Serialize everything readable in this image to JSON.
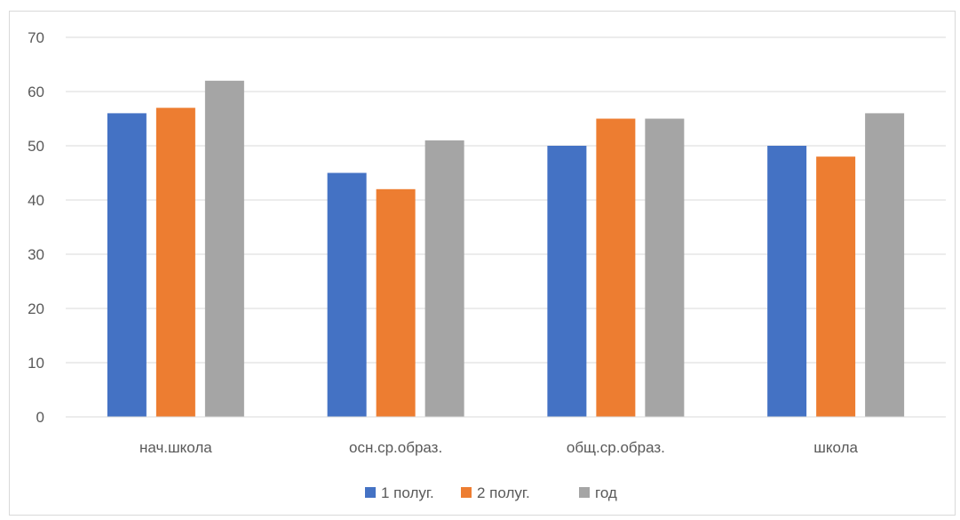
{
  "chart_data": {
    "type": "bar",
    "categories": [
      "нач.школа",
      "осн.ср.образ.",
      "общ.ср.образ.",
      "школа"
    ],
    "series": [
      {
        "name": "1 полуг.",
        "color": "#4472c4",
        "values": [
          56,
          45,
          50,
          50
        ]
      },
      {
        "name": "2 полуг.",
        "color": "#ed7d31",
        "values": [
          57,
          42,
          55,
          48
        ]
      },
      {
        "name": "год",
        "color": "#a5a5a5",
        "values": [
          62,
          51,
          55,
          56
        ]
      }
    ],
    "yticks": [
      "0",
      "10",
      "20",
      "30",
      "40",
      "50",
      "60",
      "70"
    ],
    "ylim": [
      0,
      70
    ],
    "grid": true,
    "legend_position": "bottom"
  }
}
